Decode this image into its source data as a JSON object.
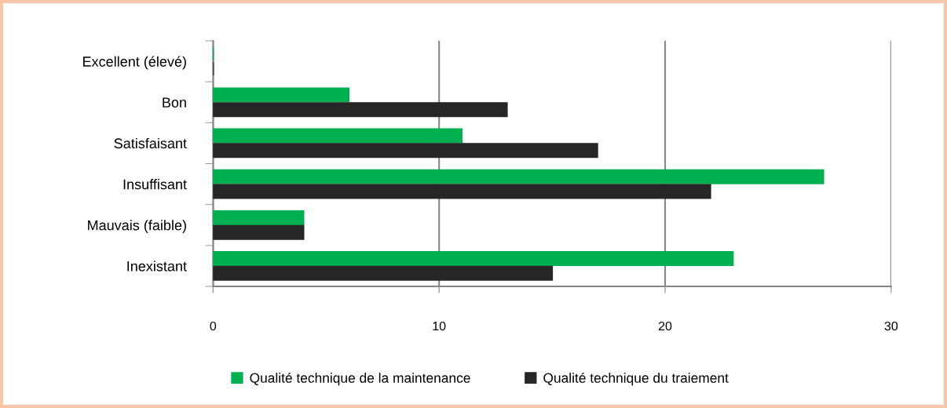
{
  "chart_data": {
    "type": "bar",
    "orientation": "horizontal",
    "categories": [
      "Excellent (élevé)",
      "Bon",
      "Satisfaisant",
      "Insuffisant",
      "Mauvais (faible)",
      "Inexistant"
    ],
    "series": [
      {
        "name": "Qualité technique de la maintenance",
        "color": "#00b050",
        "values": [
          0,
          6,
          11,
          27,
          4,
          23
        ]
      },
      {
        "name": "Qualité technique du traiement",
        "color": "#262626",
        "values": [
          0,
          13,
          17,
          22,
          4,
          15
        ]
      }
    ],
    "xlim": [
      0,
      30
    ],
    "xticks": [
      0,
      10,
      20,
      30
    ],
    "grid": "x",
    "legend": "bottom"
  }
}
